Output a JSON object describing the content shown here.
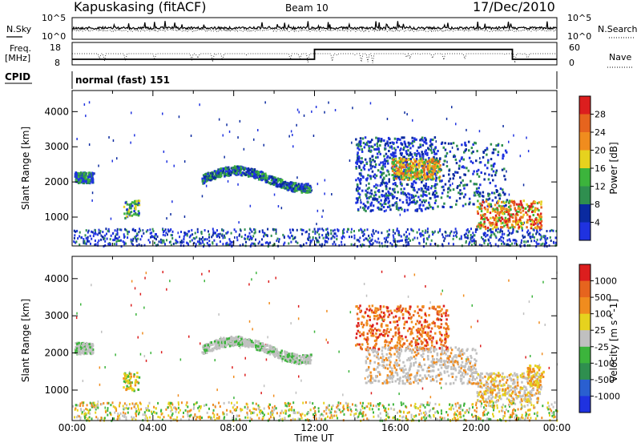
{
  "header": {
    "station": "Kapuskasing (fitACF)",
    "beam": "Beam 10",
    "date": "17/Dec/2010"
  },
  "strips": {
    "nsky": {
      "label": "N.Sky",
      "tick_hi": "10^5",
      "tick_lo": "10^0"
    },
    "nsearch": {
      "label": "N.Search",
      "tick_hi": "10^5",
      "tick_lo": "10^0"
    },
    "freq": {
      "label1": "Freq.",
      "label2": "[MHz]",
      "tick_hi": "18",
      "tick_lo": "8"
    },
    "nave": {
      "label": "Nave",
      "tick_hi": "60",
      "tick_lo": "0"
    },
    "cpid": {
      "label": "CPID",
      "value": "normal (fast) 151"
    }
  },
  "colors": {
    "blue": "#1f32e0",
    "navy": "#0a2aa0",
    "lgreen": "#3cb43c",
    "dgreen": "#2f8f4f",
    "yellow": "#e6d21e",
    "orange": "#f08c1e",
    "dorange": "#e6641e",
    "red": "#dc1e1e",
    "gray": "#c0c0c0"
  },
  "chart_data": [
    {
      "type": "heatmap",
      "name": "power",
      "ylabel": "Slant Range [km]",
      "xlabel": "Time UT",
      "xlim": [
        "00:00",
        "00:00"
      ],
      "xticks": [
        "00:00",
        "04:00",
        "08:00",
        "12:00",
        "16:00",
        "20:00",
        "00:00"
      ],
      "ylim": [
        180,
        4600
      ],
      "yticks": [
        1000,
        2000,
        3000,
        4000
      ],
      "colorbar": {
        "label": "Power [dB]",
        "ticks": [
          "4",
          "8",
          "12",
          "16",
          "20",
          "24",
          "28"
        ],
        "colors": [
          "#1f32e0",
          "#0a2aa0",
          "#2f8f4f",
          "#3cb43c",
          "#e6d21e",
          "#f08c1e",
          "#e6641e",
          "#dc1e1e"
        ]
      },
      "regions": [
        {
          "t0": 0.1,
          "t1": 1.0,
          "r0": 2000,
          "r1": 2300,
          "level": "mixed-green"
        },
        {
          "t0": 2.5,
          "t1": 3.3,
          "r0": 1000,
          "r1": 1500,
          "level": "mixed-green"
        },
        {
          "t0": 6.4,
          "t1": 11.8,
          "r0": 1800,
          "r1": 2500,
          "level": "blue-green"
        },
        {
          "t0": 14.0,
          "t1": 18.0,
          "r0": 1200,
          "r1": 3300,
          "level": "blue"
        },
        {
          "t0": 15.8,
          "t1": 18.2,
          "r0": 2100,
          "r1": 2700,
          "level": "yellow-orange"
        },
        {
          "t0": 20.0,
          "t1": 23.2,
          "r0": 700,
          "r1": 1500,
          "level": "orange-red"
        },
        {
          "t0": 0.0,
          "t1": 24.0,
          "r0": 200,
          "r1": 800,
          "level": "near-range noise"
        }
      ]
    },
    {
      "type": "heatmap",
      "name": "velocity",
      "ylabel": "Slant Range [km]",
      "xlabel": "Time UT",
      "xlim": [
        "00:00",
        "00:00"
      ],
      "xticks": [
        "00:00",
        "04:00",
        "08:00",
        "12:00",
        "16:00",
        "20:00",
        "00:00"
      ],
      "ylim": [
        180,
        4600
      ],
      "yticks": [
        1000,
        2000,
        3000,
        4000
      ],
      "colorbar": {
        "label": "Velocity [m s^-1]",
        "ticks": [
          "1000",
          "500",
          "100",
          "25",
          "-25",
          "-100",
          "-500",
          "-1000"
        ],
        "colors": [
          "#1f32e0",
          "#2a5fd0",
          "#2f8f4f",
          "#3cb43c",
          "#c0c0c0",
          "#e6d21e",
          "#f08c1e",
          "#e6641e",
          "#dc1e1e"
        ]
      },
      "regions": [
        {
          "t0": 0.1,
          "t1": 1.0,
          "r0": 2000,
          "r1": 2300,
          "level": "gray"
        },
        {
          "t0": 2.5,
          "t1": 3.3,
          "r0": 1000,
          "r1": 1500,
          "level": "green-yellow"
        },
        {
          "t0": 6.4,
          "t1": 11.8,
          "r0": 1800,
          "r1": 2500,
          "level": "gray"
        },
        {
          "t0": 14.0,
          "t1": 18.6,
          "r0": 2100,
          "r1": 3300,
          "level": "orange"
        },
        {
          "t0": 14.5,
          "t1": 20.0,
          "r0": 1200,
          "r1": 2200,
          "level": "gray"
        },
        {
          "t0": 20.0,
          "t1": 23.2,
          "r0": 700,
          "r1": 1500,
          "level": "gray-yellow"
        },
        {
          "t0": 0.0,
          "t1": 24.0,
          "r0": 200,
          "r1": 800,
          "level": "ground scatter"
        }
      ]
    }
  ]
}
